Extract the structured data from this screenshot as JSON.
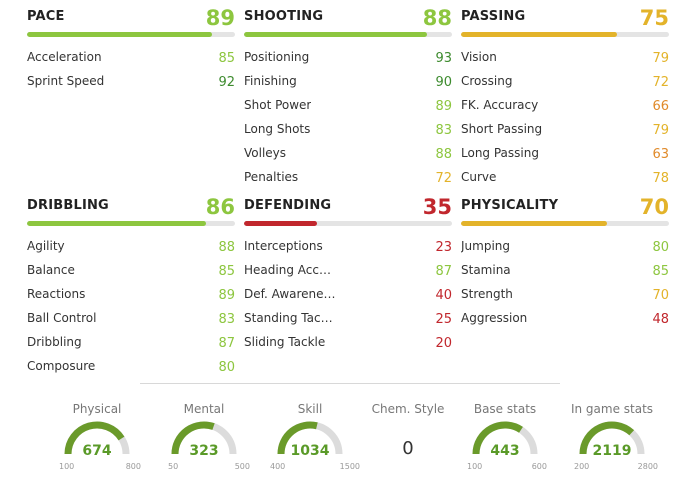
{
  "colors": {
    "green": "#8dc63f",
    "dark_green": "#3d8b2e",
    "yellow": "#e3b32a",
    "orange": "#e08a2a",
    "red": "#c1272d",
    "gauge_fill": "#6a9a2a",
    "gauge_track": "#dcdcdc"
  },
  "categories": [
    {
      "name": "PACE",
      "value": "89",
      "color": "green",
      "stats": [
        {
          "label": "Acceleration",
          "value": "85",
          "color": "green"
        },
        {
          "label": "Sprint Speed",
          "value": "92",
          "color": "dgreen"
        }
      ]
    },
    {
      "name": "SHOOTING",
      "value": "88",
      "color": "green",
      "stats": [
        {
          "label": "Positioning",
          "value": "93",
          "color": "dgreen"
        },
        {
          "label": "Finishing",
          "value": "90",
          "color": "dgreen"
        },
        {
          "label": "Shot Power",
          "value": "89",
          "color": "green"
        },
        {
          "label": "Long Shots",
          "value": "83",
          "color": "green"
        },
        {
          "label": "Volleys",
          "value": "88",
          "color": "green"
        },
        {
          "label": "Penalties",
          "value": "72",
          "color": "yellow"
        }
      ]
    },
    {
      "name": "PASSING",
      "value": "75",
      "color": "yellow",
      "stats": [
        {
          "label": "Vision",
          "value": "79",
          "color": "yellow"
        },
        {
          "label": "Crossing",
          "value": "72",
          "color": "yellow"
        },
        {
          "label": "FK. Accuracy",
          "value": "66",
          "color": "orange"
        },
        {
          "label": "Short Passing",
          "value": "79",
          "color": "yellow"
        },
        {
          "label": "Long Passing",
          "value": "63",
          "color": "orange"
        },
        {
          "label": "Curve",
          "value": "78",
          "color": "yellow"
        }
      ]
    },
    {
      "name": "DRIBBLING",
      "value": "86",
      "color": "green",
      "stats": [
        {
          "label": "Agility",
          "value": "88",
          "color": "green"
        },
        {
          "label": "Balance",
          "value": "85",
          "color": "green"
        },
        {
          "label": "Reactions",
          "value": "89",
          "color": "green"
        },
        {
          "label": "Ball Control",
          "value": "83",
          "color": "green"
        },
        {
          "label": "Dribbling",
          "value": "87",
          "color": "green"
        },
        {
          "label": "Composure",
          "value": "80",
          "color": "green"
        }
      ]
    },
    {
      "name": "DEFENDING",
      "value": "35",
      "color": "red",
      "stats": [
        {
          "label": "Interceptions",
          "value": "23",
          "color": "red"
        },
        {
          "label": "Heading Acc…",
          "value": "87",
          "color": "green"
        },
        {
          "label": "Def. Awarene…",
          "value": "40",
          "color": "red"
        },
        {
          "label": "Standing Tac…",
          "value": "25",
          "color": "red"
        },
        {
          "label": "Sliding Tackle",
          "value": "20",
          "color": "red"
        }
      ]
    },
    {
      "name": "PHYSICALITY",
      "value": "70",
      "color": "yellow",
      "stats": [
        {
          "label": "Jumping",
          "value": "80",
          "color": "green"
        },
        {
          "label": "Stamina",
          "value": "85",
          "color": "green"
        },
        {
          "label": "Strength",
          "value": "70",
          "color": "yellow"
        },
        {
          "label": "Aggression",
          "value": "48",
          "color": "red"
        }
      ]
    }
  ],
  "gauges": [
    {
      "label": "Physical",
      "value": "674",
      "min": "100",
      "max": "800"
    },
    {
      "label": "Mental",
      "value": "323",
      "min": "50",
      "max": "500"
    },
    {
      "label": "Skill",
      "value": "1034",
      "min": "400",
      "max": "1500"
    },
    {
      "label": "Chem. Style",
      "value": "0"
    },
    {
      "label": "Base stats",
      "value": "443",
      "min": "100",
      "max": "600"
    },
    {
      "label": "In game stats",
      "value": "2119",
      "min": "200",
      "max": "2800"
    }
  ]
}
